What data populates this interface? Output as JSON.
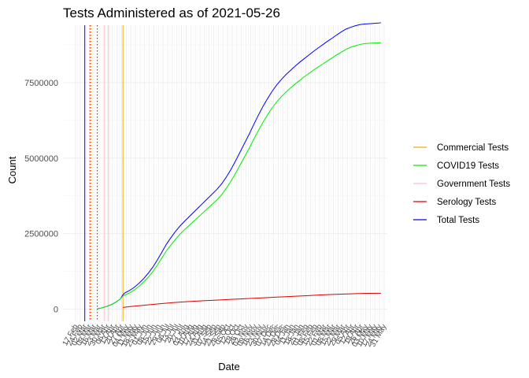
{
  "chart_data": {
    "type": "line",
    "title": "Tests Administered as of 2021-05-26",
    "xlabel": "Date",
    "ylabel": "Count",
    "ylim": [
      -400000,
      9400000
    ],
    "y_ticks": [
      0,
      2500000,
      5000000,
      7500000
    ],
    "y_tick_labels": [
      "0",
      "2500000",
      "5000000",
      "7500000"
    ],
    "x_range": [
      "2020-02-17",
      "2021-05-31"
    ],
    "x_tick_labels": [
      "17 Feb",
      "24 Feb",
      "02 Mar",
      "09 Mar",
      "16 Mar",
      "23 Mar",
      "30 Mar",
      "06 Apr",
      "13 Apr",
      "20 Apr",
      "27 Apr",
      "04 May",
      "11 May",
      "18 May",
      "25 May",
      "01 Jun",
      "08 Jun",
      "15 Jun",
      "22 Jun",
      "29 Jun",
      "06 Jul",
      "13 Jul",
      "20 Jul",
      "27 Jul",
      "03 Aug",
      "10 Aug",
      "17 Aug",
      "24 Aug",
      "31 Aug",
      "07 Sep",
      "14 Sep",
      "21 Sep",
      "28 Sep",
      "05 Oct",
      "12 Oct",
      "19 Oct",
      "26 Oct",
      "02 Nov",
      "09 Nov",
      "16 Nov",
      "23 Nov",
      "30 Nov",
      "07 Dec",
      "14 Dec",
      "21 Dec",
      "28 Dec",
      "04 Jan",
      "11 Jan",
      "18 Jan",
      "25 Jan",
      "01 Feb",
      "08 Feb",
      "15 Feb",
      "22 Feb",
      "01 Mar",
      "08 Mar",
      "15 Mar",
      "22 Mar",
      "29 Mar",
      "05 Apr",
      "12 Apr",
      "19 Apr",
      "26 Apr",
      "03 May",
      "10 May",
      "17 May",
      "24 May",
      "31 May"
    ],
    "grid": true,
    "legend_position": "right",
    "legend": [
      "Commercial Tests",
      "COVID19 Tests",
      "Government Tests",
      "Serology Tests",
      "Total Tests"
    ],
    "series": [
      {
        "name": "Total Tests",
        "color": "#0000ff",
        "x": [
          "2020-03-21",
          "2020-03-28",
          "2020-04-04",
          "2020-04-11",
          "2020-04-18",
          "2020-04-25",
          "2020-04-29",
          "2020-05-02",
          "2020-05-09",
          "2020-05-16",
          "2020-05-23",
          "2020-05-30",
          "2020-06-06",
          "2020-06-13",
          "2020-06-20",
          "2020-06-27",
          "2020-07-04",
          "2020-07-11",
          "2020-07-18",
          "2020-07-25",
          "2020-08-01",
          "2020-08-08",
          "2020-08-15",
          "2020-08-22",
          "2020-08-29",
          "2020-09-05",
          "2020-09-12",
          "2020-09-19",
          "2020-09-26",
          "2020-10-03",
          "2020-10-10",
          "2020-10-17",
          "2020-10-24",
          "2020-10-31",
          "2020-11-07",
          "2020-11-14",
          "2020-11-21",
          "2020-11-28",
          "2020-12-05",
          "2020-12-12",
          "2020-12-19",
          "2020-12-26",
          "2021-01-02",
          "2021-01-09",
          "2021-01-16",
          "2021-01-23",
          "2021-01-30",
          "2021-02-06",
          "2021-02-13",
          "2021-02-20",
          "2021-02-27",
          "2021-03-06",
          "2021-03-13",
          "2021-03-20",
          "2021-03-27",
          "2021-04-03",
          "2021-04-10",
          "2021-04-17",
          "2021-04-24",
          "2021-05-01",
          "2021-05-08",
          "2021-05-15",
          "2021-05-22",
          "2021-05-26"
        ],
        "values": [
          15000,
          45000,
          90000,
          150000,
          230000,
          340000,
          480000,
          540000,
          620000,
          720000,
          850000,
          1000000,
          1180000,
          1380000,
          1620000,
          1880000,
          2150000,
          2370000,
          2580000,
          2760000,
          2920000,
          3070000,
          3220000,
          3370000,
          3520000,
          3670000,
          3820000,
          3970000,
          4150000,
          4370000,
          4620000,
          4900000,
          5200000,
          5500000,
          5800000,
          6120000,
          6430000,
          6720000,
          6980000,
          7220000,
          7430000,
          7610000,
          7770000,
          7910000,
          8050000,
          8180000,
          8300000,
          8420000,
          8540000,
          8650000,
          8760000,
          8870000,
          8970000,
          9080000,
          9180000,
          9270000,
          9330000,
          9380000,
          9420000,
          9440000,
          9450000,
          9460000,
          9470000,
          9480000
        ]
      },
      {
        "name": "COVID19 Tests",
        "color": "#00ee00",
        "x": [
          "2020-03-21",
          "2020-03-28",
          "2020-04-04",
          "2020-04-11",
          "2020-04-18",
          "2020-04-25",
          "2020-04-29",
          "2020-05-02",
          "2020-05-09",
          "2020-05-16",
          "2020-05-23",
          "2020-05-30",
          "2020-06-06",
          "2020-06-13",
          "2020-06-20",
          "2020-06-27",
          "2020-07-04",
          "2020-07-11",
          "2020-07-18",
          "2020-07-25",
          "2020-08-01",
          "2020-08-08",
          "2020-08-15",
          "2020-08-22",
          "2020-08-29",
          "2020-09-05",
          "2020-09-12",
          "2020-09-19",
          "2020-09-26",
          "2020-10-03",
          "2020-10-10",
          "2020-10-17",
          "2020-10-24",
          "2020-10-31",
          "2020-11-07",
          "2020-11-14",
          "2020-11-21",
          "2020-11-28",
          "2020-12-05",
          "2020-12-12",
          "2020-12-19",
          "2020-12-26",
          "2021-01-02",
          "2021-01-09",
          "2021-01-16",
          "2021-01-23",
          "2021-01-30",
          "2021-02-06",
          "2021-02-13",
          "2021-02-20",
          "2021-02-27",
          "2021-03-06",
          "2021-03-13",
          "2021-03-20",
          "2021-03-27",
          "2021-04-03",
          "2021-04-10",
          "2021-04-17",
          "2021-04-24",
          "2021-05-01",
          "2021-05-08",
          "2021-05-15",
          "2021-05-22",
          "2021-05-26"
        ],
        "values": [
          15000,
          45000,
          90000,
          150000,
          230000,
          340000,
          440000,
          470000,
          540000,
          630000,
          750000,
          890000,
          1050000,
          1230000,
          1450000,
          1690000,
          1930000,
          2130000,
          2320000,
          2490000,
          2640000,
          2780000,
          2920000,
          3060000,
          3200000,
          3340000,
          3480000,
          3620000,
          3790000,
          4000000,
          4230000,
          4490000,
          4770000,
          5050000,
          5330000,
          5630000,
          5920000,
          6190000,
          6440000,
          6670000,
          6870000,
          7040000,
          7190000,
          7330000,
          7460000,
          7580000,
          7700000,
          7810000,
          7920000,
          8020000,
          8120000,
          8220000,
          8320000,
          8420000,
          8510000,
          8600000,
          8670000,
          8720000,
          8760000,
          8790000,
          8800000,
          8810000,
          8815000,
          8820000
        ]
      },
      {
        "name": "Serology Tests",
        "color": "#dd0000",
        "x": [
          "2020-04-29",
          "2020-05-09",
          "2020-05-23",
          "2020-06-06",
          "2020-06-20",
          "2020-07-04",
          "2020-07-18",
          "2020-08-01",
          "2020-08-15",
          "2020-08-29",
          "2020-09-12",
          "2020-09-26",
          "2020-10-10",
          "2020-10-24",
          "2020-11-07",
          "2020-11-21",
          "2020-12-05",
          "2020-12-19",
          "2021-01-02",
          "2021-01-16",
          "2021-01-30",
          "2021-02-13",
          "2021-02-27",
          "2021-03-13",
          "2021-03-27",
          "2021-04-10",
          "2021-04-24",
          "2021-05-08",
          "2021-05-26"
        ],
        "values": [
          60000,
          85000,
          115000,
          145000,
          175000,
          200000,
          225000,
          245000,
          265000,
          280000,
          295000,
          310000,
          325000,
          340000,
          355000,
          370000,
          385000,
          400000,
          415000,
          430000,
          445000,
          460000,
          475000,
          490000,
          500000,
          510000,
          520000,
          525000,
          530000
        ]
      }
    ],
    "reference_lines": [
      {
        "series": "Total Tests",
        "date": "2020-03-02",
        "color": "#0000ff",
        "style": "solid"
      },
      {
        "series": "Serology Tests",
        "date": "2020-03-10",
        "color": "#dd0000",
        "style": "dotted"
      },
      {
        "series": "Commercial Tests",
        "date": "2020-03-12",
        "color": "#ccaa00",
        "style": "dotted"
      },
      {
        "series": "Serology Tests",
        "date": "2020-03-21",
        "color": "#dd0000",
        "style": "dotted"
      },
      {
        "series": "Government Tests",
        "date": "2020-04-01",
        "color": "#ffc0cb",
        "style": "solid"
      },
      {
        "series": "Government Tests",
        "date": "2020-04-07",
        "color": "#ffc0cb",
        "style": "solid"
      },
      {
        "series": "Commercial Tests",
        "date": "2020-04-29",
        "color": "#f0b000",
        "style": "solid"
      }
    ],
    "legend_colors": {
      "Commercial Tests": "#e6b000",
      "COVID19 Tests": "#00ee00",
      "Government Tests": "#ffc0cb",
      "Serology Tests": "#dd0000",
      "Total Tests": "#0000ff"
    }
  }
}
